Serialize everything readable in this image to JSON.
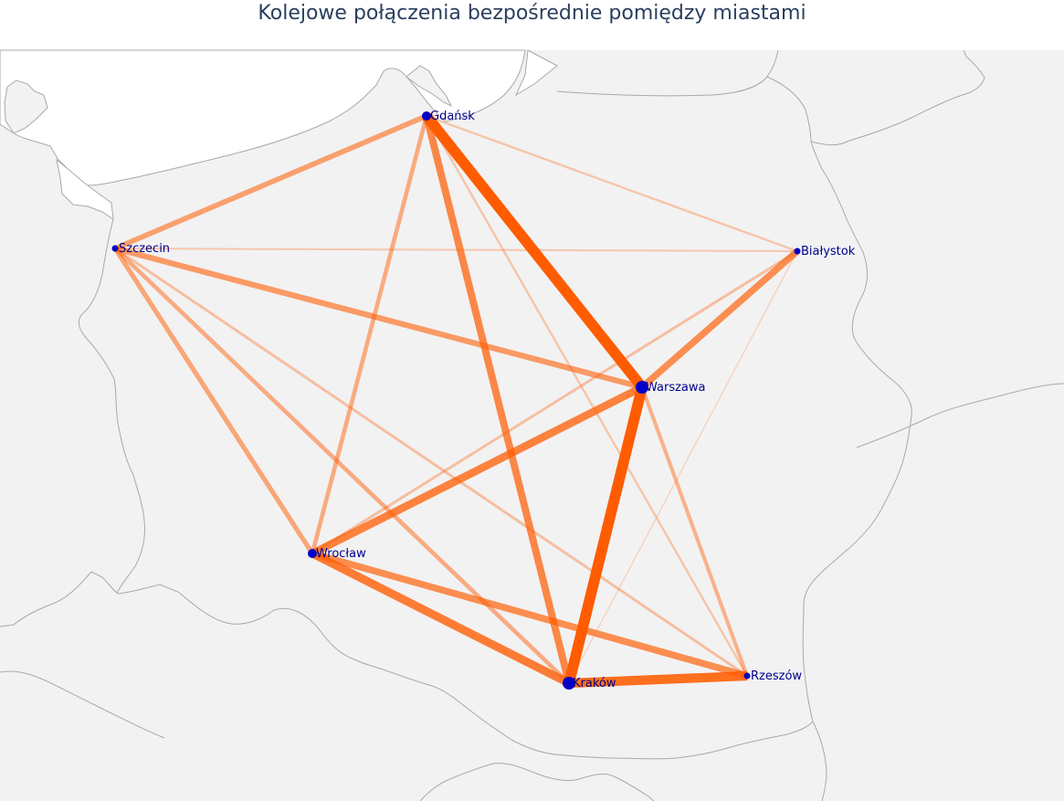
{
  "title": "Kolejowe połączenia bezpośrednie pomiędzy miastami",
  "colors": {
    "land": "#f2f2f3",
    "sea": "#ffffff",
    "border": "#a9a9a9",
    "edge": "#ff5c00",
    "node": "#0000c8",
    "label": "#00008b"
  },
  "cities": [
    {
      "name": "Gdańsk",
      "size": "medium"
    },
    {
      "name": "Szczecin",
      "size": "small"
    },
    {
      "name": "Białystok",
      "size": "small"
    },
    {
      "name": "Warszawa",
      "size": "large"
    },
    {
      "name": "Wrocław",
      "size": "medium"
    },
    {
      "name": "Kraków",
      "size": "large"
    },
    {
      "name": "Rzeszów",
      "size": "small"
    }
  ],
  "connections": [
    {
      "from": "Gdańsk",
      "to": "Warszawa",
      "strength": 1.0
    },
    {
      "from": "Warszawa",
      "to": "Kraków",
      "strength": 1.0
    },
    {
      "from": "Kraków",
      "to": "Rzeszów",
      "strength": 0.85
    },
    {
      "from": "Gdańsk",
      "to": "Kraków",
      "strength": 0.65
    },
    {
      "from": "Warszawa",
      "to": "Wrocław",
      "strength": 0.7
    },
    {
      "from": "Wrocław",
      "to": "Kraków",
      "strength": 0.75
    },
    {
      "from": "Wrocław",
      "to": "Rzeszów",
      "strength": 0.6
    },
    {
      "from": "Warszawa",
      "to": "Białystok",
      "strength": 0.6
    },
    {
      "from": "Szczecin",
      "to": "Warszawa",
      "strength": 0.5
    },
    {
      "from": "Gdańsk",
      "to": "Szczecin",
      "strength": 0.45
    },
    {
      "from": "Szczecin",
      "to": "Wrocław",
      "strength": 0.4
    },
    {
      "from": "Szczecin",
      "to": "Kraków",
      "strength": 0.35
    },
    {
      "from": "Gdańsk",
      "to": "Wrocław",
      "strength": 0.35
    },
    {
      "from": "Warszawa",
      "to": "Rzeszów",
      "strength": 0.3
    },
    {
      "from": "Szczecin",
      "to": "Rzeszów",
      "strength": 0.2
    },
    {
      "from": "Gdańsk",
      "to": "Rzeszów",
      "strength": 0.15
    },
    {
      "from": "Wrocław",
      "to": "Białystok",
      "strength": 0.2
    },
    {
      "from": "Gdańsk",
      "to": "Białystok",
      "strength": 0.15
    },
    {
      "from": "Szczecin",
      "to": "Białystok",
      "strength": 0.12
    },
    {
      "from": "Kraków",
      "to": "Białystok",
      "strength": 0.05
    }
  ]
}
